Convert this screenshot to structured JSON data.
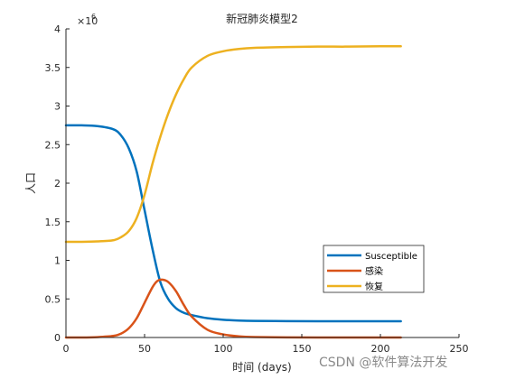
{
  "chart_data": {
    "type": "line",
    "title": "新冠肺炎模型2",
    "xlabel": "时间 (days)",
    "ylabel": "人口",
    "xlim": [
      0,
      250
    ],
    "ylim": [
      0,
      4
    ],
    "y_multiplier_label": "×10",
    "y_multiplier_exponent": "6",
    "x_ticks": [
      0,
      50,
      100,
      150,
      200,
      250
    ],
    "y_ticks": [
      0,
      0.5,
      1,
      1.5,
      2,
      2.5,
      3,
      3.5,
      4
    ],
    "x_tick_labels": [
      "0",
      "50",
      "100",
      "150",
      "200",
      "250"
    ],
    "y_tick_labels": [
      "0",
      "0.5",
      "1",
      "1.5",
      "2",
      "2.5",
      "3",
      "3.5",
      "4"
    ],
    "grid": false,
    "legend_position": "lower-right",
    "series": [
      {
        "name": "Susceptible",
        "color": "#0072BD",
        "x": [
          0,
          10,
          20,
          30,
          35,
          40,
          45,
          50,
          55,
          60,
          65,
          70,
          75,
          80,
          90,
          100,
          110,
          120,
          140,
          160,
          180,
          200,
          213
        ],
        "y": [
          2.75,
          2.75,
          2.74,
          2.7,
          2.62,
          2.45,
          2.15,
          1.65,
          1.15,
          0.72,
          0.5,
          0.38,
          0.32,
          0.29,
          0.25,
          0.23,
          0.22,
          0.215,
          0.212,
          0.21,
          0.21,
          0.21,
          0.21
        ]
      },
      {
        "name": "感染",
        "color": "#D95319",
        "x": [
          0,
          10,
          20,
          30,
          35,
          40,
          45,
          50,
          55,
          58,
          61,
          65,
          70,
          75,
          80,
          90,
          100,
          110,
          120,
          140,
          160,
          180,
          200,
          213
        ],
        "y": [
          0.0,
          0.0,
          0.005,
          0.02,
          0.05,
          0.12,
          0.25,
          0.45,
          0.65,
          0.73,
          0.75,
          0.72,
          0.6,
          0.42,
          0.27,
          0.1,
          0.04,
          0.015,
          0.006,
          0.002,
          0.0,
          0.0,
          0.0,
          0.0
        ]
      },
      {
        "name": "恢复",
        "color": "#EDB120",
        "x": [
          0,
          10,
          20,
          30,
          35,
          40,
          45,
          50,
          55,
          60,
          65,
          70,
          75,
          80,
          90,
          100,
          110,
          120,
          140,
          160,
          180,
          200,
          213
        ],
        "y": [
          1.24,
          1.24,
          1.245,
          1.26,
          1.3,
          1.38,
          1.55,
          1.85,
          2.25,
          2.6,
          2.9,
          3.15,
          3.35,
          3.5,
          3.65,
          3.71,
          3.74,
          3.755,
          3.765,
          3.77,
          3.77,
          3.775,
          3.775
        ]
      }
    ]
  },
  "watermark": "CSDN @软件算法开发"
}
